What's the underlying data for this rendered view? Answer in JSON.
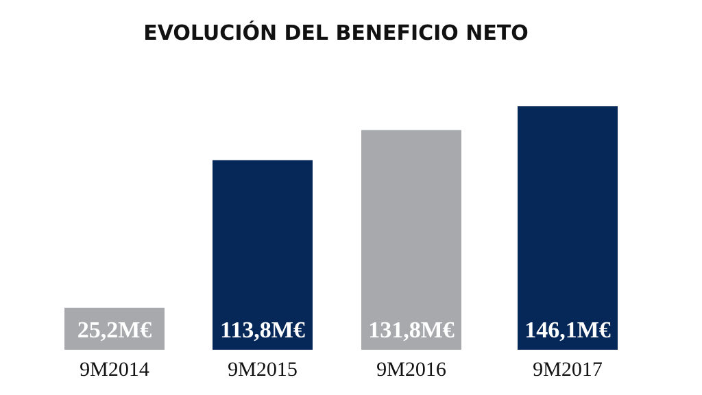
{
  "chart_data": {
    "type": "bar",
    "title": "EVOLUCIÓN DEL BENEFICIO NETO",
    "categories": [
      "9M2014",
      "9M2015",
      "9M2016",
      "9M2017"
    ],
    "values": [
      25.2,
      113.8,
      131.8,
      146.1
    ],
    "value_labels": [
      "25,2M€",
      "113,8M€",
      "131,8M€",
      "146,1M€"
    ],
    "colors": [
      "#a7a9ac",
      "#052859",
      "#a7a9ac",
      "#052859"
    ]
  }
}
